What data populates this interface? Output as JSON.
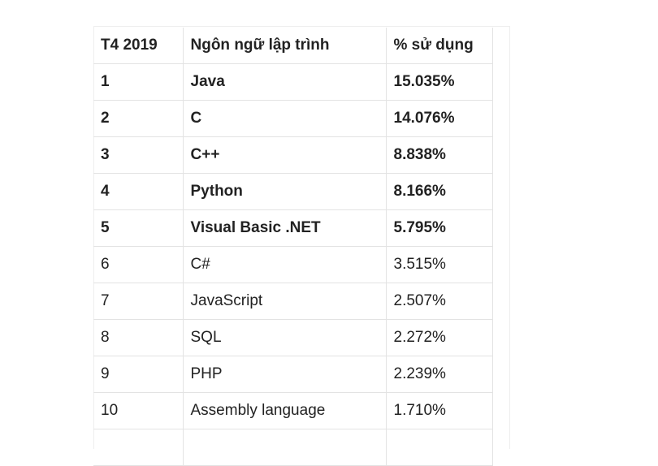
{
  "table": {
    "header": [
      "T4 2019",
      "Ngôn ngữ lập trình",
      "% sử dụng"
    ],
    "rows": [
      [
        "1",
        "Java",
        "15.035%"
      ],
      [
        "2",
        "C",
        "14.076%"
      ],
      [
        "3",
        "C++",
        "8.838%"
      ],
      [
        "4",
        "Python",
        "8.166%"
      ],
      [
        "5",
        "Visual Basic .NET",
        "5.795%"
      ],
      [
        "6",
        "C#",
        "3.515%"
      ],
      [
        "7",
        "JavaScript",
        "2.507%"
      ],
      [
        "8",
        "SQL",
        "2.272%"
      ],
      [
        "9",
        "PHP",
        "2.239%"
      ],
      [
        "10",
        "Assembly language",
        "1.710%"
      ]
    ]
  }
}
